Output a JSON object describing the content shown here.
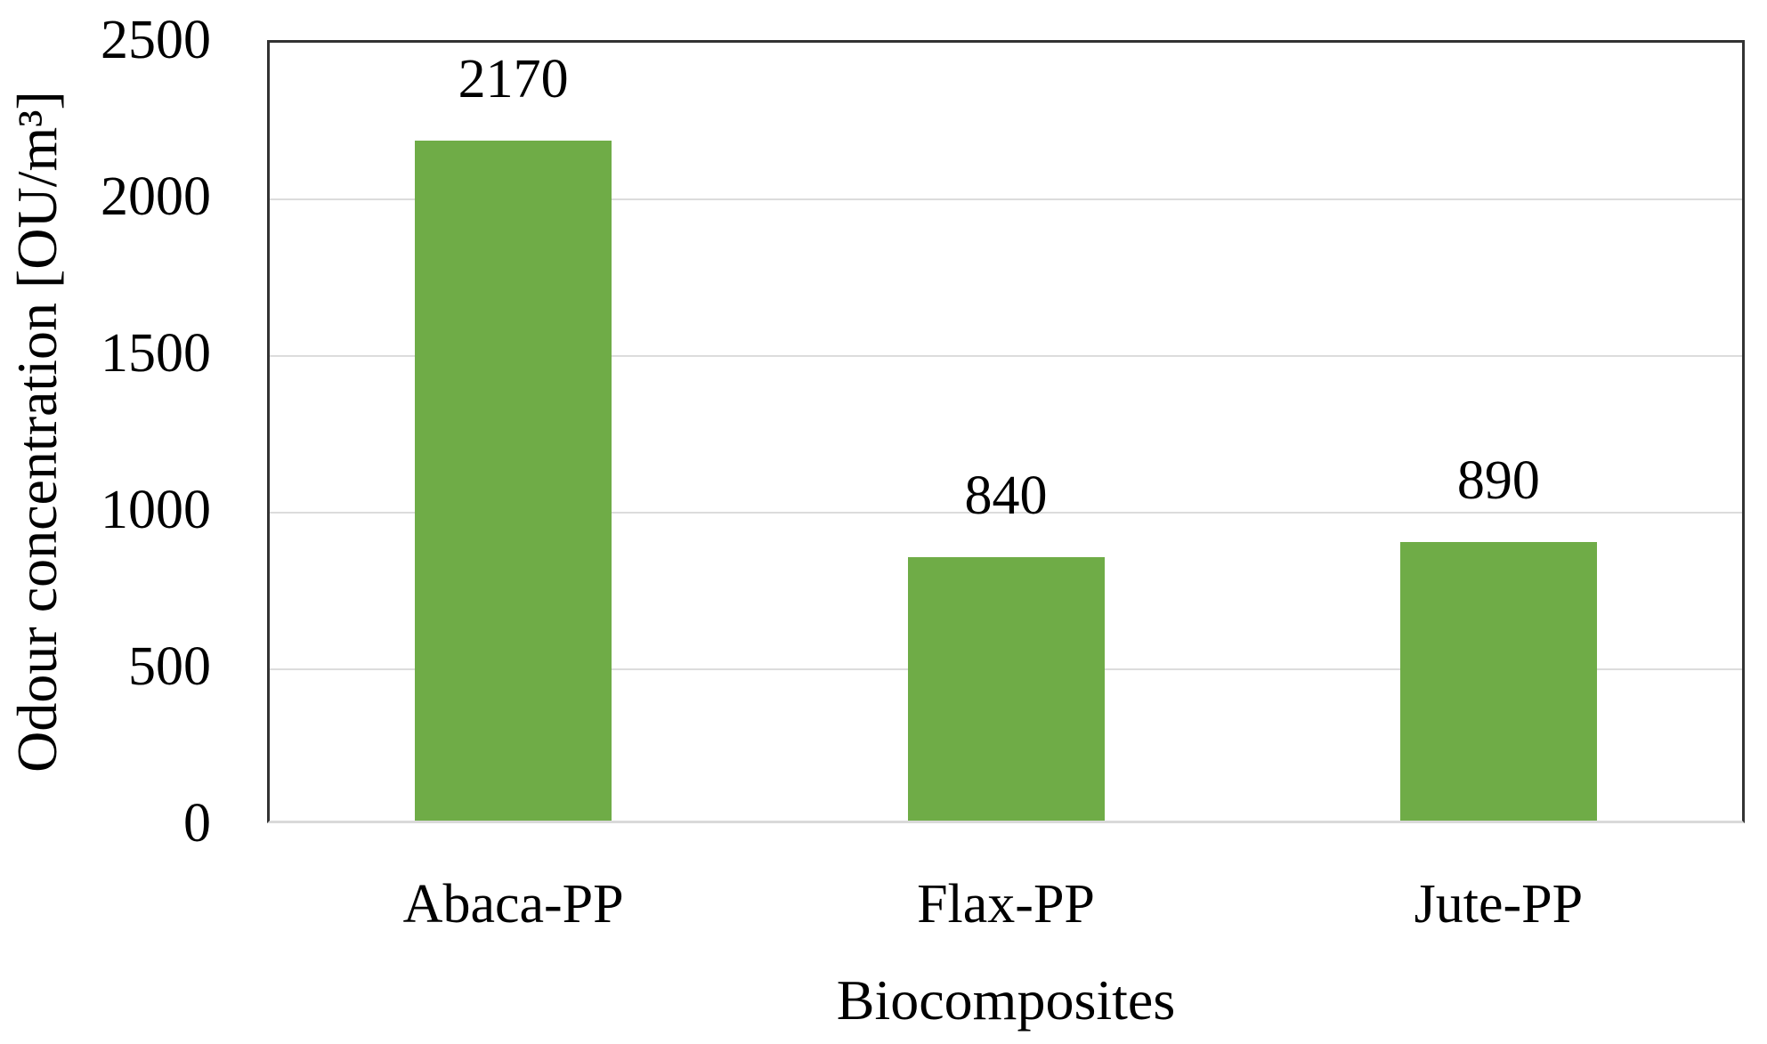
{
  "chart_data": {
    "type": "bar",
    "title": "",
    "categories": [
      "Abaca-PP",
      "Flax-PP",
      "Jute-PP"
    ],
    "values": [
      2170,
      840,
      890
    ],
    "data_labels": [
      "2170",
      "840",
      "890"
    ],
    "xlabel": "Biocomposites",
    "ylabel": "Odour concentration [OU/m³]",
    "ylim": [
      0,
      2500
    ],
    "ytick_interval": 500,
    "yticks": [
      0,
      500,
      1000,
      1500,
      2000,
      2500
    ],
    "ytick_labels": [
      "0",
      "500",
      "1000",
      "1500",
      "2000",
      "2500"
    ],
    "grid": "horizontal",
    "legend": "none",
    "bar_color": "#6fac47",
    "gridline_color": "#dcdcdc",
    "axis_line_color": "#333333",
    "baseline_color": "#d9d9d9",
    "text_color": "#000000"
  }
}
